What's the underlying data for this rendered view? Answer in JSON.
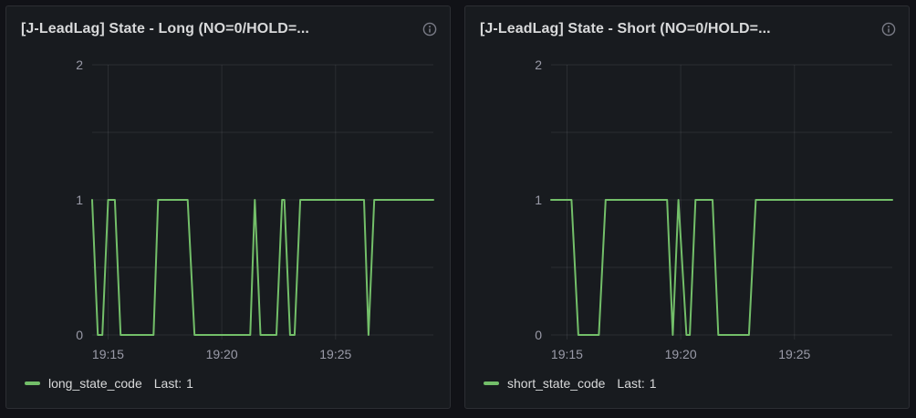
{
  "theme": {
    "page_bg": "#111217",
    "panel_bg": "#181b1f",
    "panel_border": "#2c2e33",
    "title_color": "#d8d9da",
    "axis_text_color": "rgba(204,204,220,0.72)",
    "grid_color": "rgba(204,204,220,0.10)",
    "series_green": "#73bf69",
    "icon_color": "rgba(204,204,220,0.55)"
  },
  "icons": {
    "info-icon": "ⓘ"
  },
  "panels": [
    {
      "title": "[J-LeadLag] State - Long (NO=0/HOLD=...",
      "legend": {
        "series_name": "long_state_code",
        "stat_label": "Last:",
        "stat_value": "1"
      }
    },
    {
      "title": "[J-LeadLag] State - Short (NO=0/HOLD=...",
      "legend": {
        "series_name": "short_state_code",
        "stat_label": "Last:",
        "stat_value": "1"
      }
    }
  ],
  "chart_data": [
    {
      "type": "line",
      "title": "[J-LeadLag] State - Long (NO=0/HOLD=...",
      "x_unit": "minutes after 19:00",
      "x_range": [
        14.3,
        29.3
      ],
      "y_range": [
        0,
        2
      ],
      "x_ticks": [
        {
          "t": 15,
          "label": "19:15"
        },
        {
          "t": 20,
          "label": "19:20"
        },
        {
          "t": 25,
          "label": "19:25"
        }
      ],
      "y_ticks": [
        {
          "v": 0,
          "label": "0"
        },
        {
          "v": 1,
          "label": "1"
        },
        {
          "v": 2,
          "label": "2"
        }
      ],
      "y_gridlines": [
        0,
        0.5,
        1,
        1.5,
        2
      ],
      "grid": true,
      "legend_position": "bottom",
      "series": [
        {
          "name": "long_state_code",
          "color": "#73bf69",
          "last": 1,
          "points": [
            [
              14.3,
              1
            ],
            [
              14.55,
              0
            ],
            [
              14.75,
              0
            ],
            [
              15.0,
              1
            ],
            [
              15.3,
              1
            ],
            [
              15.55,
              0
            ],
            [
              17.0,
              0
            ],
            [
              17.2,
              1
            ],
            [
              18.5,
              1
            ],
            [
              18.8,
              0
            ],
            [
              21.25,
              0
            ],
            [
              21.45,
              1
            ],
            [
              21.7,
              0
            ],
            [
              22.4,
              0
            ],
            [
              22.65,
              1
            ],
            [
              22.75,
              1
            ],
            [
              23.0,
              0
            ],
            [
              23.2,
              0
            ],
            [
              23.45,
              1
            ],
            [
              26.25,
              1
            ],
            [
              26.45,
              0
            ],
            [
              26.7,
              1
            ],
            [
              29.3,
              1
            ]
          ]
        }
      ]
    },
    {
      "type": "line",
      "title": "[J-LeadLag] State - Short (NO=0/HOLD=...",
      "x_unit": "minutes after 19:00",
      "x_range": [
        14.3,
        29.3
      ],
      "y_range": [
        0,
        2
      ],
      "x_ticks": [
        {
          "t": 15,
          "label": "19:15"
        },
        {
          "t": 20,
          "label": "19:20"
        },
        {
          "t": 25,
          "label": "19:25"
        }
      ],
      "y_ticks": [
        {
          "v": 0,
          "label": "0"
        },
        {
          "v": 1,
          "label": "1"
        },
        {
          "v": 2,
          "label": "2"
        }
      ],
      "y_gridlines": [
        0,
        0.5,
        1,
        1.5,
        2
      ],
      "grid": true,
      "legend_position": "bottom",
      "series": [
        {
          "name": "short_state_code",
          "color": "#73bf69",
          "last": 1,
          "points": [
            [
              14.3,
              1
            ],
            [
              15.2,
              1
            ],
            [
              15.5,
              0
            ],
            [
              16.4,
              0
            ],
            [
              16.7,
              1
            ],
            [
              19.4,
              1
            ],
            [
              19.65,
              0
            ],
            [
              19.9,
              1
            ],
            [
              20.25,
              0
            ],
            [
              20.4,
              0
            ],
            [
              20.65,
              1
            ],
            [
              21.4,
              1
            ],
            [
              21.65,
              0
            ],
            [
              23.0,
              0
            ],
            [
              23.3,
              1
            ],
            [
              29.3,
              1
            ]
          ]
        }
      ]
    }
  ]
}
